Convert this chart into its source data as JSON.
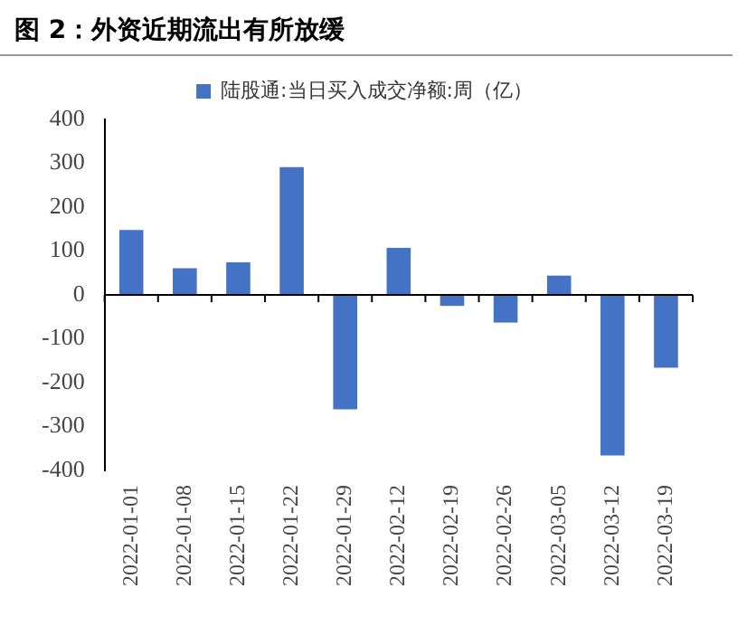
{
  "chart_data": {
    "type": "bar",
    "title": "图 2：外资近期流出有所放缓",
    "categories": [
      "2022-01-01",
      "2022-01-08",
      "2022-01-15",
      "2022-01-22",
      "2022-01-29",
      "2022-02-12",
      "2022-02-19",
      "2022-02-26",
      "2022-03-05",
      "2022-03-12",
      "2022-03-19"
    ],
    "series": [
      {
        "name": "陆股通:当日买入成交净额:周（亿）",
        "color": "#4472c4",
        "values": [
          148,
          61,
          74,
          291,
          -261,
          107,
          -25,
          -63,
          44,
          -366,
          -166
        ]
      }
    ],
    "ylim": [
      -400,
      400
    ],
    "yticks": [
      -400,
      -300,
      -200,
      -100,
      0,
      100,
      200,
      300,
      400
    ],
    "grid": false,
    "ref_lines": [
      {
        "axis": "y",
        "value": 0,
        "color": "#000000"
      }
    ],
    "legend": "top"
  }
}
